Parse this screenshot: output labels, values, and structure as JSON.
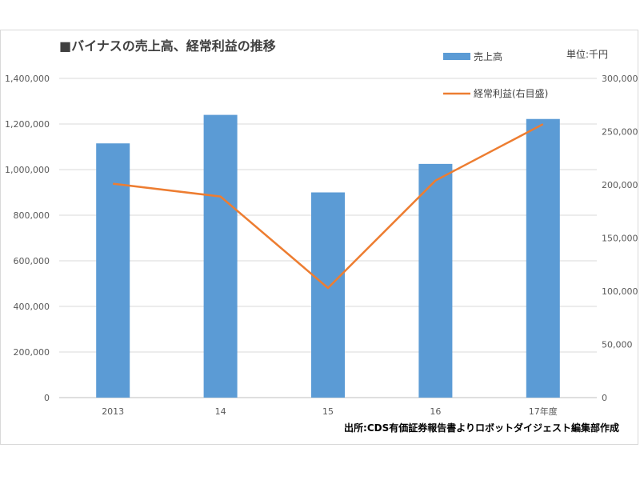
{
  "chart_data": {
    "type": "bar",
    "title": "■バイナスの売上高、経常利益の推移",
    "unit_label": "単位:千円",
    "source": "出所:CDS有価証券報告書よりロボットダイジェスト編集部作成",
    "categories": [
      "2013",
      "14",
      "15",
      "16",
      "17年度"
    ],
    "series": [
      {
        "name": "売上高",
        "type": "bar",
        "axis": "left",
        "color": "#5b9bd5",
        "values": [
          1115000,
          1240000,
          900000,
          1025000,
          1222000
        ]
      },
      {
        "name": "経常利益(右目盛)",
        "type": "line",
        "axis": "right",
        "color": "#ed7d31",
        "values": [
          201000,
          189000,
          103000,
          204000,
          257000
        ]
      }
    ],
    "y_left": {
      "min": 0,
      "max": 1400000,
      "step": 200000,
      "tick_labels": [
        "0",
        "200,000",
        "400,000",
        "600,000",
        "800,000",
        "1,000,000",
        "1,200,000",
        "1,400,000"
      ]
    },
    "y_right": {
      "min": 0,
      "max": 300000,
      "step": 50000,
      "tick_labels": [
        "0",
        "50,000",
        "100,000",
        "150,000",
        "200,000",
        "250,000",
        "300,000"
      ]
    },
    "grid": true,
    "legend_position": "top-right"
  }
}
